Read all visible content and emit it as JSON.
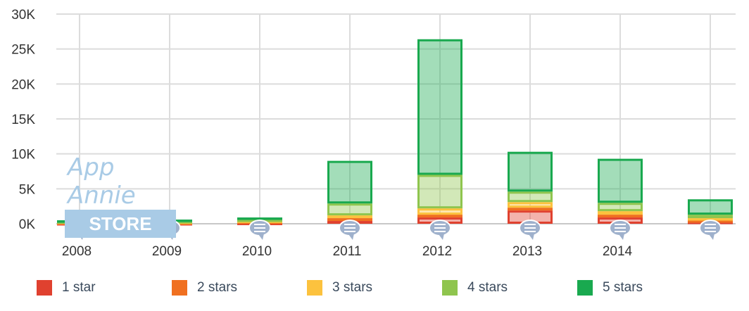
{
  "chart_data": {
    "type": "bar",
    "stacked": true,
    "categories": [
      "2008",
      "2009",
      "2010",
      "2011",
      "2012",
      "2013",
      "2014",
      ""
    ],
    "series": [
      {
        "name": "1 star",
        "color": "#e0412f",
        "values": [
          100,
          100,
          150,
          400,
          900,
          1900,
          900,
          300
        ]
      },
      {
        "name": "2 stars",
        "color": "#f07020",
        "values": [
          100,
          100,
          150,
          400,
          400,
          400,
          400,
          200
        ]
      },
      {
        "name": "3 stars",
        "color": "#fcc23e",
        "values": [
          100,
          100,
          150,
          400,
          900,
          800,
          500,
          300
        ]
      },
      {
        "name": "4 stars",
        "color": "#8fc54e",
        "values": [
          50,
          100,
          150,
          1700,
          4800,
          1500,
          1200,
          500
        ]
      },
      {
        "name": "5 stars",
        "color": "#19a94f",
        "values": [
          150,
          200,
          300,
          6100,
          19400,
          5700,
          6300,
          2200
        ]
      }
    ],
    "ylim": [
      0,
      30000
    ],
    "yticks": [
      "0K",
      "5K",
      "10K",
      "15K",
      "20K",
      "25K",
      "30K"
    ],
    "grid": true,
    "legend": "bottom"
  },
  "watermark": {
    "line1": "App Annie",
    "line2": "STORE STATS"
  },
  "icons": {
    "annotation": "comment-bubble-icon"
  }
}
